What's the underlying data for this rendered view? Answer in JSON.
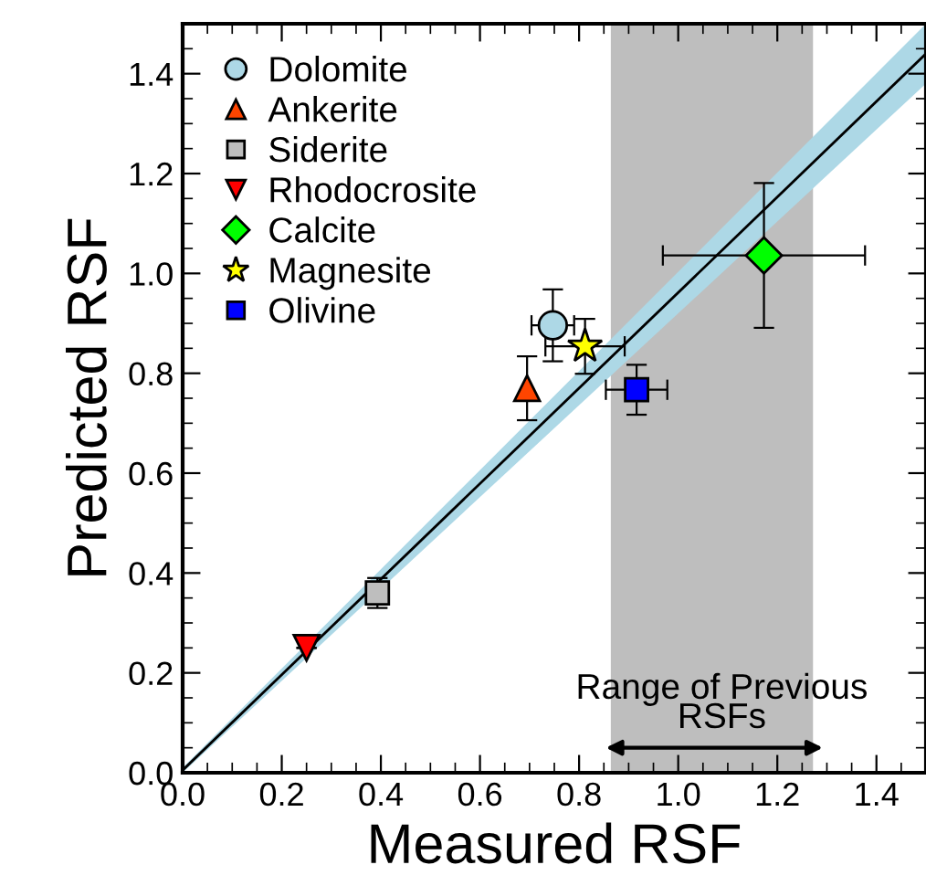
{
  "chart_data": {
    "type": "scatter",
    "xlabel": "Measured RSF",
    "ylabel": "Predicted RSF",
    "xlim": [
      0,
      1.5
    ],
    "ylim": [
      0,
      1.5
    ],
    "xticks": [
      {
        "value": 0,
        "label": "0.0"
      },
      0.2,
      0.4,
      0.6,
      0.8,
      {
        "value": 1,
        "label": "1.0"
      },
      1.2,
      1.4
    ],
    "yticks": [
      {
        "value": 0,
        "label": "0.0"
      },
      0.2,
      0.4,
      0.6,
      0.8,
      {
        "value": 1,
        "label": "1.0"
      },
      1.2,
      1.4
    ],
    "grid": false,
    "legend": "top left",
    "bands": [
      {
        "axis": "x",
        "from": 0.864,
        "to": 1.272,
        "label": "Range of Previous\nRSFs",
        "color": "#bebebe"
      }
    ],
    "series": [
      {
        "type": "line",
        "x": [
          0,
          1.5
        ],
        "values": [
          0.005,
          1.44
        ],
        "lower": [
          0,
          1.38
        ],
        "upper": [
          0.01,
          1.5
        ],
        "color": "#000000",
        "marker": "none"
      },
      {
        "name": "Dolomite",
        "color": "#add8e6",
        "marker": "circle",
        "x": [
          0.747
        ],
        "values": [
          0.896
        ],
        "errors": [
          0.072
        ],
        "xerrors": [
          0.043
        ]
      },
      {
        "name": "Ankerite",
        "color": "#ff4500",
        "marker": "triangle",
        "x": [
          0.695
        ],
        "values": [
          0.77
        ],
        "errors": [
          0.064
        ],
        "xerrors": [
          null
        ]
      },
      {
        "name": "Siderite",
        "color": "#bebebe",
        "marker": "square",
        "x": [
          0.393
        ],
        "values": [
          0.36
        ],
        "errors": [
          0.03
        ],
        "xerrors": [
          null
        ]
      },
      {
        "name": "Rhodocrosite",
        "color": "#ff0000",
        "marker": "triangle_down",
        "x": [
          0.25
        ],
        "values": [
          0.25
        ],
        "errors": [
          null
        ],
        "xerrors": [
          null
        ]
      },
      {
        "name": "Calcite",
        "color": "#00ff00",
        "marker": "diamond",
        "x": [
          1.173
        ],
        "values": [
          1.036
        ],
        "errors": [
          0.145
        ],
        "xerrors": [
          0.204
        ]
      },
      {
        "name": "Magnesite",
        "color": "#ffff00",
        "marker": "star",
        "x": [
          0.812
        ],
        "values": [
          0.854
        ],
        "errors": [
          0.055
        ],
        "xerrors": [
          0.08
        ]
      },
      {
        "name": "Olivine",
        "color": "#0000ff",
        "marker": "square",
        "x": [
          0.916
        ],
        "values": [
          0.767
        ],
        "errors": [
          0.05
        ],
        "xerrors": [
          0.062
        ]
      }
    ]
  }
}
